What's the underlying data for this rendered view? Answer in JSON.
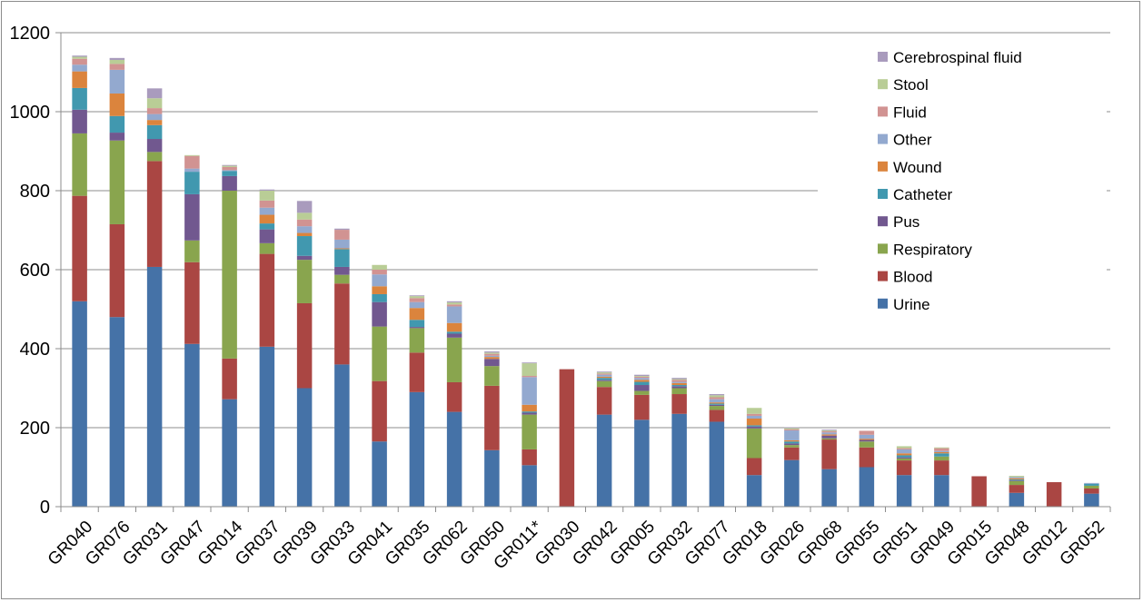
{
  "chart_data": {
    "type": "bar",
    "stacked": true,
    "categories": [
      "GR040",
      "GR076",
      "GR031",
      "GR047",
      "GR014",
      "GR037",
      "GR039",
      "GR033",
      "GR041",
      "GR035",
      "GR062",
      "GR050",
      "GR011*",
      "GR030",
      "GR042",
      "GR005",
      "GR032",
      "GR077",
      "GR018",
      "GR026",
      "GR068",
      "GR055",
      "GR051",
      "GR049",
      "GR015",
      "GR048",
      "GR012",
      "GR052"
    ],
    "series": [
      {
        "name": "Urine",
        "color": "#4572A7",
        "values": [
          520,
          480,
          607,
          412,
          272,
          405,
          300,
          360,
          165,
          290,
          240,
          143,
          105,
          0,
          233,
          220,
          235,
          215,
          80,
          118,
          95,
          100,
          80,
          80,
          0,
          35,
          0,
          33
        ]
      },
      {
        "name": "Blood",
        "color": "#AA4643",
        "values": [
          267,
          235,
          268,
          207,
          103,
          235,
          215,
          205,
          153,
          100,
          75,
          163,
          40,
          348,
          70,
          63,
          50,
          30,
          43,
          32,
          75,
          50,
          37,
          37,
          77,
          20,
          62,
          13
        ]
      },
      {
        "name": "Respiratory",
        "color": "#89A54E",
        "values": [
          158,
          212,
          23,
          55,
          425,
          27,
          110,
          22,
          138,
          62,
          113,
          50,
          88,
          0,
          15,
          10,
          15,
          10,
          75,
          6,
          3,
          15,
          5,
          10,
          0,
          10,
          0,
          7
        ]
      },
      {
        "name": "Pus",
        "color": "#71588F",
        "values": [
          60,
          20,
          33,
          117,
          37,
          35,
          10,
          20,
          62,
          3,
          10,
          18,
          5,
          0,
          3,
          15,
          5,
          3,
          5,
          4,
          7,
          4,
          3,
          0,
          0,
          2,
          0,
          0
        ]
      },
      {
        "name": "Catheter",
        "color": "#4198AF",
        "values": [
          55,
          42,
          35,
          57,
          13,
          15,
          50,
          45,
          20,
          18,
          5,
          0,
          3,
          0,
          5,
          8,
          3,
          3,
          3,
          5,
          0,
          0,
          5,
          8,
          0,
          2,
          0,
          5
        ]
      },
      {
        "name": "Wound",
        "color": "#DB843D",
        "values": [
          42,
          57,
          13,
          0,
          0,
          22,
          8,
          2,
          20,
          30,
          22,
          5,
          17,
          0,
          3,
          5,
          5,
          3,
          17,
          3,
          3,
          3,
          5,
          3,
          0,
          3,
          0,
          0
        ]
      },
      {
        "name": "Other",
        "color": "#93A9CF",
        "values": [
          17,
          60,
          15,
          8,
          2,
          18,
          17,
          22,
          30,
          15,
          42,
          3,
          70,
          0,
          5,
          5,
          3,
          8,
          7,
          25,
          5,
          10,
          10,
          3,
          0,
          3,
          0,
          2
        ]
      },
      {
        "name": "Fluid",
        "color": "#D19392",
        "values": [
          15,
          15,
          15,
          32,
          8,
          18,
          17,
          25,
          12,
          10,
          5,
          5,
          3,
          0,
          3,
          3,
          5,
          5,
          5,
          3,
          3,
          10,
          3,
          7,
          0,
          0,
          0,
          0
        ]
      },
      {
        "name": "Stool",
        "color": "#B9CD96",
        "values": [
          5,
          10,
          25,
          2,
          3,
          25,
          17,
          0,
          12,
          5,
          5,
          3,
          32,
          0,
          3,
          2,
          2,
          5,
          15,
          3,
          2,
          0,
          5,
          2,
          0,
          3,
          0,
          0
        ]
      },
      {
        "name": "Cerebrospinal fluid",
        "color": "#A99BBD",
        "values": [
          3,
          5,
          25,
          0,
          2,
          3,
          30,
          3,
          0,
          2,
          3,
          3,
          2,
          0,
          2,
          3,
          3,
          3,
          0,
          2,
          2,
          0,
          0,
          0,
          0,
          0,
          0,
          0
        ]
      }
    ],
    "legend_order": [
      "Cerebrospinal fluid",
      "Stool",
      "Fluid",
      "Other",
      "Wound",
      "Catheter",
      "Pus",
      "Respiratory",
      "Blood",
      "Urine"
    ],
    "ylim": [
      0,
      1200
    ],
    "yticks": [
      0,
      200,
      400,
      600,
      800,
      1000,
      1200
    ],
    "grid": true,
    "legend_position": "top-right",
    "title": "",
    "xlabel": "",
    "ylabel": ""
  }
}
